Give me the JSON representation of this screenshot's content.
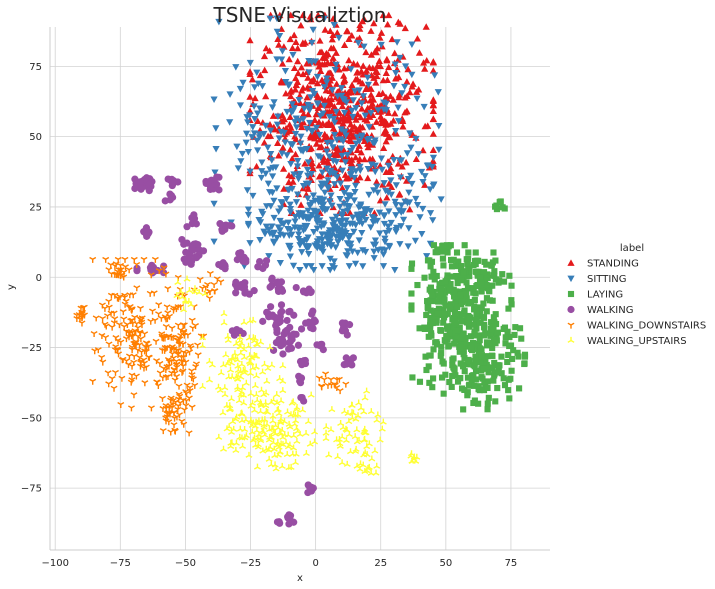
{
  "chart_data": {
    "type": "scatter",
    "title": "TSNE Visualiztion",
    "xlabel": "x",
    "ylabel": "y",
    "xlim": [
      -102,
      90
    ],
    "ylim": [
      -97,
      89
    ],
    "xticks": [
      -100,
      -75,
      -50,
      -25,
      0,
      25,
      50,
      75
    ],
    "yticks": [
      -75,
      -50,
      -25,
      0,
      25,
      50,
      75
    ],
    "x_tick_labels": [
      "−100",
      "−75",
      "−50",
      "−25",
      "0",
      "25",
      "50",
      "75"
    ],
    "y_tick_labels": [
      "−75",
      "−50",
      "−25",
      "0",
      "25",
      "50",
      "75"
    ],
    "grid": true,
    "legend": {
      "title": "label",
      "placement": "right"
    },
    "series": [
      {
        "name": "STANDING",
        "color": "#e41a1c",
        "marker": "triangle-up",
        "clusters": [
          {
            "cx": 10,
            "cy": 58,
            "sx": 16,
            "sy": 16,
            "n": 650
          }
        ]
      },
      {
        "name": "SITTING",
        "color": "#377eb8",
        "marker": "triangle-down",
        "clusters": [
          {
            "cx": 5,
            "cy": 48,
            "sx": 20,
            "sy": 20,
            "n": 300
          },
          {
            "cx": 5,
            "cy": 18,
            "sx": 14,
            "sy": 7,
            "n": 250
          },
          {
            "cx": 35,
            "cy": 25,
            "sx": 6,
            "sy": 8,
            "n": 40
          },
          {
            "cx": -22,
            "cy": 50,
            "sx": 5,
            "sy": 8,
            "n": 30
          }
        ]
      },
      {
        "name": "LAYING",
        "color": "#4daf4a",
        "marker": "square",
        "clusters": [
          {
            "cx": 50,
            "cy": -15,
            "sx": 6,
            "sy": 12,
            "n": 200
          },
          {
            "cx": 65,
            "cy": -25,
            "sx": 7,
            "sy": 10,
            "n": 220
          },
          {
            "cx": 62,
            "cy": 0,
            "sx": 7,
            "sy": 4,
            "n": 80
          },
          {
            "cx": 70,
            "cy": 26,
            "sx": 1.5,
            "sy": 1,
            "n": 8
          },
          {
            "cx": 48,
            "cy": 11,
            "sx": 1.5,
            "sy": 1.5,
            "n": 8
          }
        ]
      },
      {
        "name": "WALKING",
        "color": "#984ea3",
        "marker": "circle",
        "clusters": [
          {
            "cx": -65,
            "cy": 33,
            "sx": 2,
            "sy": 1.5,
            "n": 20
          },
          {
            "cx": -55,
            "cy": 34,
            "sx": 1,
            "sy": 1,
            "n": 8
          },
          {
            "cx": -56,
            "cy": 29,
            "sx": 1,
            "sy": 1,
            "n": 6
          },
          {
            "cx": -40,
            "cy": 33,
            "sx": 1.5,
            "sy": 1.5,
            "n": 14
          },
          {
            "cx": -48,
            "cy": 20,
            "sx": 1,
            "sy": 1,
            "n": 6
          },
          {
            "cx": -65,
            "cy": 16,
            "sx": 1,
            "sy": 1,
            "n": 8
          },
          {
            "cx": -48,
            "cy": 9,
            "sx": 3,
            "sy": 2,
            "n": 25
          },
          {
            "cx": -35,
            "cy": 18,
            "sx": 1.5,
            "sy": 1,
            "n": 10
          },
          {
            "cx": -28,
            "cy": 7,
            "sx": 1.5,
            "sy": 1,
            "n": 8
          },
          {
            "cx": -62,
            "cy": 3,
            "sx": 3,
            "sy": 1,
            "n": 12
          },
          {
            "cx": -35,
            "cy": 4,
            "sx": 1,
            "sy": 1,
            "n": 6
          },
          {
            "cx": -20,
            "cy": 5,
            "sx": 1,
            "sy": 1,
            "n": 5
          },
          {
            "cx": -28,
            "cy": -3,
            "sx": 2,
            "sy": 1.5,
            "n": 12
          },
          {
            "cx": -15,
            "cy": -2,
            "sx": 2,
            "sy": 1.5,
            "n": 12
          },
          {
            "cx": -5,
            "cy": -5,
            "sx": 1.5,
            "sy": 1.5,
            "n": 8
          },
          {
            "cx": -15,
            "cy": -13,
            "sx": 3,
            "sy": 2,
            "n": 20
          },
          {
            "cx": -2,
            "cy": -15,
            "sx": 1.5,
            "sy": 2,
            "n": 10
          },
          {
            "cx": -12,
            "cy": -22,
            "sx": 3,
            "sy": 3,
            "n": 28
          },
          {
            "cx": -30,
            "cy": -20,
            "sx": 1,
            "sy": 1.5,
            "n": 6
          },
          {
            "cx": 10,
            "cy": -18,
            "sx": 1.5,
            "sy": 2,
            "n": 10
          },
          {
            "cx": 2,
            "cy": -25,
            "sx": 1,
            "sy": 1,
            "n": 5
          },
          {
            "cx": 12,
            "cy": -30,
            "sx": 1.5,
            "sy": 1.5,
            "n": 8
          },
          {
            "cx": -5,
            "cy": -30,
            "sx": 1,
            "sy": 1,
            "n": 5
          },
          {
            "cx": -6,
            "cy": -36,
            "sx": 1,
            "sy": 1,
            "n": 4
          },
          {
            "cx": -5,
            "cy": -45,
            "sx": 1,
            "sy": 1,
            "n": 3
          },
          {
            "cx": -2,
            "cy": -75,
            "sx": 1.2,
            "sy": 1,
            "n": 8
          },
          {
            "cx": -11,
            "cy": -86,
            "sx": 2,
            "sy": 1,
            "n": 12
          }
        ]
      },
      {
        "name": "WALKING_DOWNSTAIRS",
        "color": "#ff7f00",
        "marker": "tri-down",
        "clusters": [
          {
            "cx": -68,
            "cy": -20,
            "sx": 8,
            "sy": 12,
            "n": 180
          },
          {
            "cx": -54,
            "cy": -28,
            "sx": 5,
            "sy": 8,
            "n": 100
          },
          {
            "cx": -75,
            "cy": 2,
            "sx": 2,
            "sy": 2,
            "n": 20
          },
          {
            "cx": -90,
            "cy": -13,
            "sx": 1,
            "sy": 2,
            "n": 15
          },
          {
            "cx": -54,
            "cy": -48,
            "sx": 3,
            "sy": 4,
            "n": 40
          },
          {
            "cx": -40,
            "cy": -3,
            "sx": 3,
            "sy": 2,
            "n": 15
          },
          {
            "cx": 5,
            "cy": -37,
            "sx": 3,
            "sy": 1.5,
            "n": 15
          }
        ]
      },
      {
        "name": "WALKING_UPSTAIRS",
        "color": "#ffff33",
        "marker": "tri-up",
        "clusters": [
          {
            "cx": -28,
            "cy": -35,
            "sx": 7,
            "sy": 10,
            "n": 120
          },
          {
            "cx": -18,
            "cy": -55,
            "sx": 8,
            "sy": 6,
            "n": 140
          },
          {
            "cx": 15,
            "cy": -55,
            "sx": 5,
            "sy": 7,
            "n": 60
          },
          {
            "cx": 20,
            "cy": -67,
            "sx": 2,
            "sy": 2,
            "n": 12
          },
          {
            "cx": 38,
            "cy": -65,
            "sx": 1,
            "sy": 1,
            "n": 8
          },
          {
            "cx": -48,
            "cy": -5,
            "sx": 3,
            "sy": 3,
            "n": 15
          }
        ]
      }
    ]
  }
}
